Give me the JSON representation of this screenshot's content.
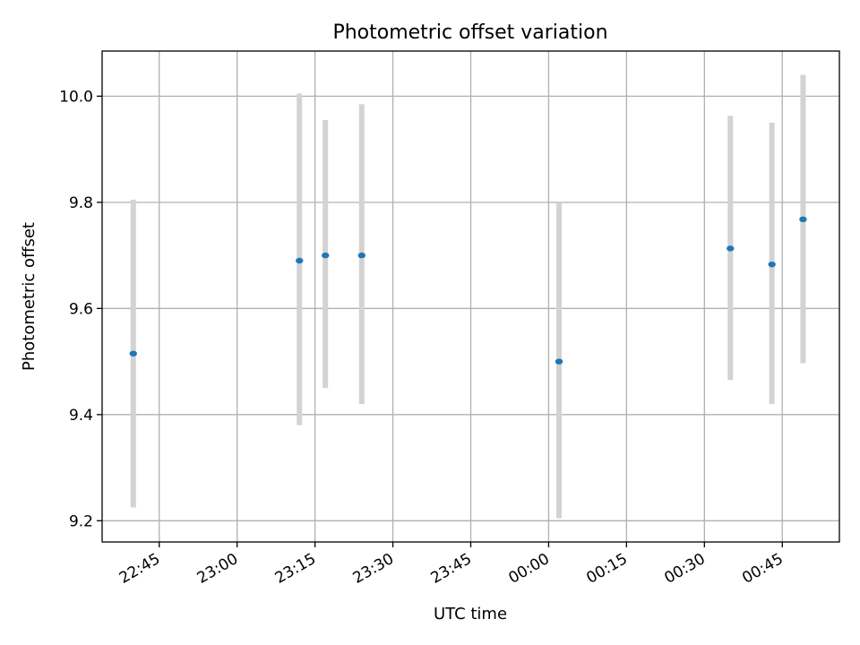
{
  "chart_data": {
    "type": "scatter",
    "title": "Photometric offset variation",
    "xlabel": "UTC time",
    "ylabel": "Photometric offset",
    "x_ticks": [
      "22:45",
      "23:00",
      "23:15",
      "23:30",
      "23:45",
      "00:00",
      "00:15",
      "00:30",
      "00:45"
    ],
    "y_ticks": [
      "9.2",
      "9.4",
      "9.6",
      "9.8",
      "10.0"
    ],
    "xlim": [
      "22:34",
      "00:56"
    ],
    "ylim": [
      9.16,
      10.085
    ],
    "grid": true,
    "series": [
      {
        "points": [
          {
            "x": "22:40",
            "y": 9.515,
            "err_low": 9.225,
            "err_high": 9.805
          },
          {
            "x": "23:12",
            "y": 9.69,
            "err_low": 9.38,
            "err_high": 10.005
          },
          {
            "x": "23:17",
            "y": 9.7,
            "err_low": 9.45,
            "err_high": 9.955
          },
          {
            "x": "23:24",
            "y": 9.7,
            "err_low": 9.42,
            "err_high": 9.985
          },
          {
            "x": "00:02",
            "y": 9.5,
            "err_low": 9.205,
            "err_high": 9.8
          },
          {
            "x": "00:35",
            "y": 9.713,
            "err_low": 9.465,
            "err_high": 9.963
          },
          {
            "x": "00:43",
            "y": 9.683,
            "err_low": 9.42,
            "err_high": 9.95
          },
          {
            "x": "00:49",
            "y": 9.768,
            "err_low": 9.497,
            "err_high": 10.04
          }
        ]
      }
    ],
    "colors": {
      "marker": "#1f77b4",
      "errorbar": "#d3d3d3",
      "grid": "#b0b0b0"
    }
  }
}
